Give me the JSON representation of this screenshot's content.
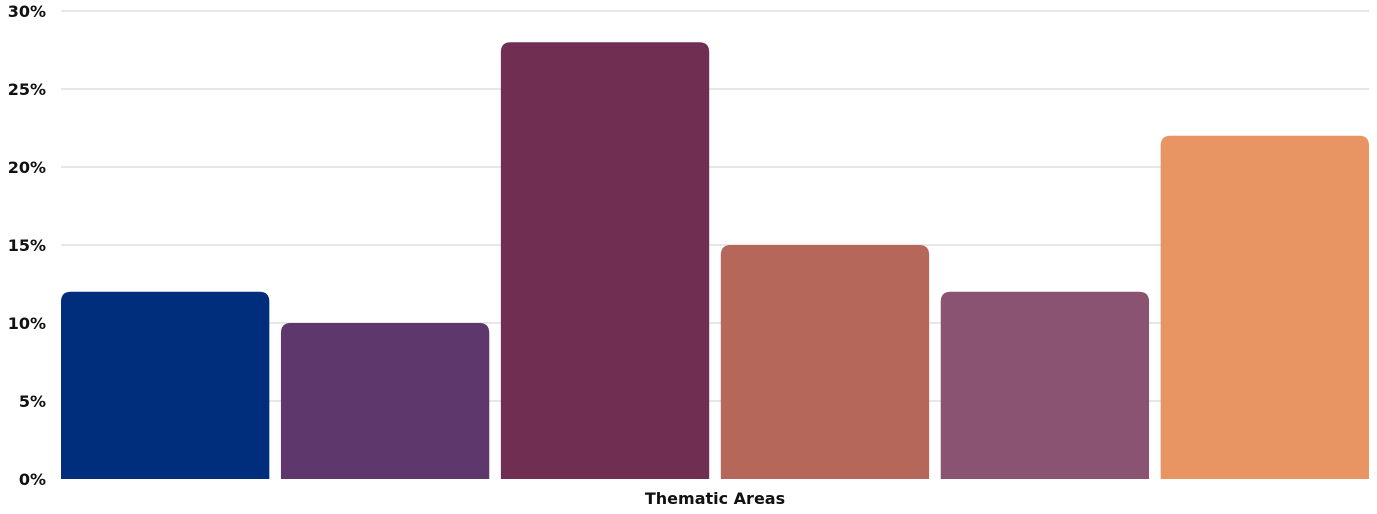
{
  "chart_data": {
    "type": "bar",
    "title": "",
    "xlabel": "Thematic Areas",
    "ylabel": "",
    "y_tick_format": "percent",
    "ylim": [
      0,
      30
    ],
    "y_ticks": [
      0,
      5,
      10,
      15,
      20,
      25,
      30
    ],
    "y_tick_labels": [
      "0%",
      "5%",
      "10%",
      "15%",
      "20%",
      "25%",
      "30%"
    ],
    "grid": true,
    "legend": "none",
    "values": [
      12,
      10,
      28,
      15,
      12,
      22
    ],
    "colors": [
      "#002e7c",
      "#5e376c",
      "#702f52",
      "#b5685a",
      "#8a5372",
      "#e99463"
    ]
  }
}
